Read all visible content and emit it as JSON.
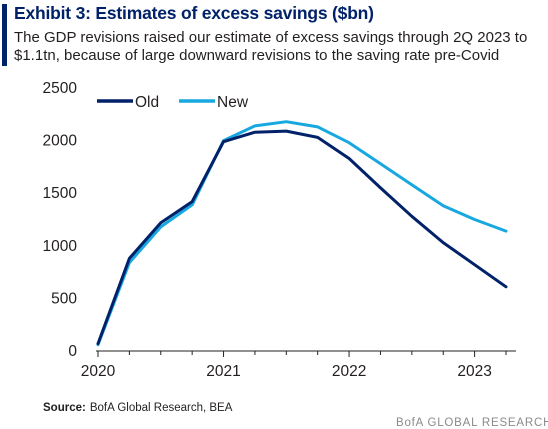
{
  "header": {
    "title": "Exhibit 3: Estimates of excess savings ($bn)",
    "subtitle_line1": "The GDP revisions raised our estimate of excess savings through 2Q 2023 to",
    "subtitle_line2": "$1.1tn, because of large downward revisions to the saving rate pre-Covid"
  },
  "footer": {
    "source_label": "Source:",
    "source_text": "BofA Global Research, BEA",
    "brand": "BofA GLOBAL RESEARCH"
  },
  "colors": {
    "old": "#012169",
    "new": "#18a8e0",
    "accent": "#012169"
  },
  "chart_data": {
    "type": "line",
    "title": "Exhibit 3: Estimates of excess savings ($bn)",
    "xlabel": "",
    "ylabel": "",
    "xlim": [
      2020.0,
      2023.25
    ],
    "ylim": [
      0,
      2500
    ],
    "yticks": [
      0,
      500,
      1000,
      1500,
      2000,
      2500
    ],
    "xticks": [
      2020,
      2021,
      2022,
      2023
    ],
    "legend_position": "top-left",
    "grid": false,
    "series": [
      {
        "name": "Old",
        "x": [
          2020.0,
          2020.25,
          2020.5,
          2020.75,
          2021.0,
          2021.25,
          2021.5,
          2021.75,
          2022.0,
          2022.25,
          2022.5,
          2022.75,
          2023.0,
          2023.25
        ],
        "y": [
          70,
          880,
          1220,
          1420,
          1990,
          2080,
          2090,
          2030,
          1830,
          1550,
          1280,
          1030,
          820,
          610
        ]
      },
      {
        "name": "New",
        "x": [
          2020.0,
          2020.25,
          2020.5,
          2020.75,
          2021.0,
          2021.25,
          2021.5,
          2021.75,
          2022.0,
          2022.25,
          2022.5,
          2022.75,
          2023.0,
          2023.25
        ],
        "y": [
          60,
          840,
          1180,
          1390,
          2000,
          2140,
          2180,
          2130,
          1980,
          1780,
          1580,
          1380,
          1250,
          1140
        ]
      }
    ]
  }
}
